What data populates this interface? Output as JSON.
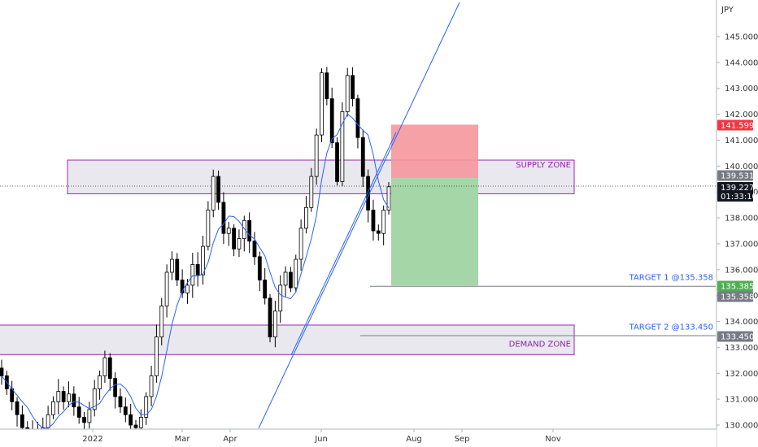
{
  "chart_data": {
    "type": "candlestick",
    "currency": "JPY",
    "y_ticks": [
      "130.000",
      "131.000",
      "132.000",
      "133.000",
      "134.000",
      "135.000",
      "136.000",
      "137.000",
      "138.000",
      "139.000",
      "140.000",
      "141.000",
      "142.000",
      "143.000",
      "144.000",
      "145.000"
    ],
    "x_ticks": [
      "2022",
      "Mar",
      "Apr",
      "Jun",
      "Aug",
      "Sep",
      "Nov"
    ],
    "ylim": [
      129.9,
      146.2
    ],
    "ohlc_closes": [
      131.9,
      131.4,
      130.9,
      130.4,
      129.9,
      129.6,
      129.8,
      129.7,
      129.9,
      130.4,
      130.9,
      131.3,
      130.9,
      131.2,
      130.7,
      130.3,
      130.1,
      130.6,
      131.4,
      131.9,
      132.6,
      131.8,
      131.1,
      130.7,
      130.4,
      130.0,
      129.9,
      130.3,
      131.1,
      131.9,
      133.4,
      134.6,
      135.9,
      136.4,
      135.6,
      135.1,
      135.4,
      136.2,
      135.8,
      136.9,
      138.3,
      139.6,
      138.6,
      137.4,
      137.6,
      136.8,
      137.2,
      137.9,
      137.1,
      136.5,
      135.6,
      134.9,
      133.4,
      134.4,
      135.4,
      135.9,
      135.3,
      136.4,
      137.6,
      138.4,
      139.6,
      141.2,
      143.6,
      142.6,
      140.9,
      139.4,
      142.1,
      143.5,
      142.6,
      141.1,
      139.6,
      138.3,
      137.5,
      137.4,
      138.3,
      139.2
    ],
    "supply_zone": {
      "label": "SUPPLY ZONE",
      "low": 138.93,
      "high": 140.23
    },
    "demand_zone": {
      "label": "DEMAND ZONE",
      "low": 132.72,
      "high": 133.86
    },
    "position": {
      "entry": 139.531,
      "stop": 141.599,
      "target": 135.385
    },
    "target1": {
      "label": "TARGET 1 @135.358",
      "price": 135.358
    },
    "target2": {
      "label": "TARGET 2 @133.450",
      "price": 133.45
    },
    "price_tags": [
      {
        "value": "141.599",
        "color": "#f23645"
      },
      {
        "value": "139.531",
        "color": "#787b86"
      },
      {
        "value": "139.227",
        "sub": "01:33:10",
        "color": "#131722"
      },
      {
        "value": "135.385",
        "color": "#4caf50"
      },
      {
        "value": "135.358",
        "color": "#787b86"
      },
      {
        "value": "133.450",
        "color": "#787b86"
      }
    ],
    "colors": {
      "candle": "#000000",
      "ma": "#2962ff",
      "trend": "#2962ff",
      "zone_border": "#9c27b0",
      "zone_fill": "#e8e8ee",
      "stop_fill": "#f5979c",
      "target_fill": "#a5d6a7"
    }
  }
}
